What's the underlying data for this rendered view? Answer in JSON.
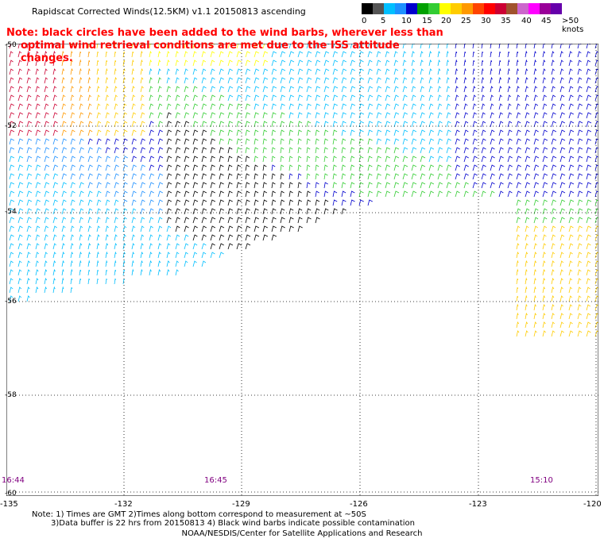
{
  "title": "Rapidscat Corrected Winds(12.5KM) v1.1 20150813 ascending",
  "note_line1": "Note: black circles have been added to the wind barbs, wherever less than",
  "note_line2": "optimal wind retrieval conditions are met due to the ISS attitude changes.",
  "colorbar": {
    "labels": [
      "0",
      "5",
      "10",
      "15",
      "20",
      "25",
      "30",
      "35",
      "40",
      "45",
      ">50 knots"
    ],
    "colors": [
      "#000000",
      "#555555",
      "#00bfff",
      "#1e90ff",
      "#0000cd",
      "#00a000",
      "#33cc33",
      "#ffff00",
      "#ffcc00",
      "#ff9900",
      "#ff4400",
      "#ff0000",
      "#cc0033",
      "#a0522d",
      "#cc66cc",
      "#ff00ff",
      "#990099",
      "#6600aa"
    ]
  },
  "lat_labels": [
    "-50",
    "-52",
    "-54",
    "-56",
    "-58",
    "-60"
  ],
  "lon_labels": [
    "-135",
    "-132",
    "-129",
    "-126",
    "-123",
    "-120"
  ],
  "time_labels": [
    "16:44",
    "16:45",
    "15:10"
  ],
  "footnote_line1": "Note: 1) Times are GMT 2)Times along bottom correspond to measurement at ~50S",
  "footnote_line2": "3)Data buffer is 22 hrs from 20150813 4) Black wind barbs indicate possible contamination",
  "credit": "NOAA/NESDIS/Center for Satellite Applications and Research"
}
